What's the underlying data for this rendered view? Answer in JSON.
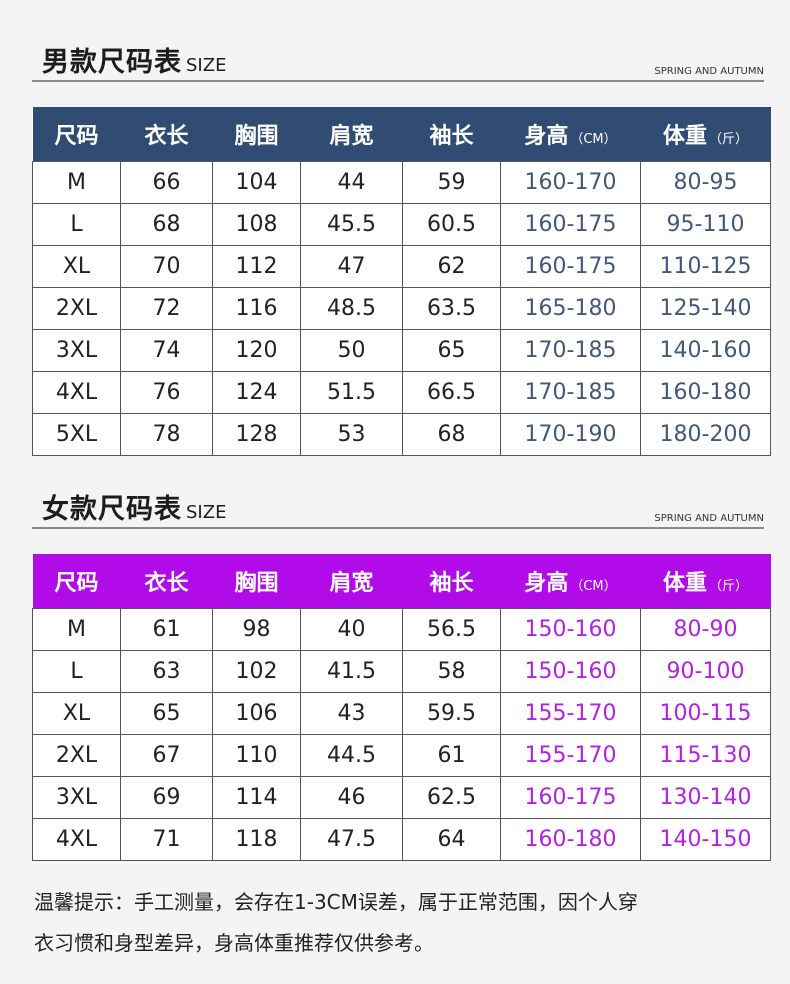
{
  "colors": {
    "men_header_bg": "#304c72",
    "women_header_bg": "#b10be9",
    "men_range_text": "#44577a",
    "women_range_text": "#b321e6"
  },
  "men": {
    "title": "男款尺码表",
    "title_en": "SIZE",
    "subtitle": "SPRING AND AUTUMN",
    "headers": [
      "尺码",
      "衣长",
      "胸围",
      "肩宽",
      "袖长",
      "身高",
      "体重"
    ],
    "header_units": {
      "height": "（CM）",
      "weight": "（斤）"
    },
    "rows": [
      [
        "M",
        "66",
        "104",
        "44",
        "59",
        "160-170",
        "80-95"
      ],
      [
        "L",
        "68",
        "108",
        "45.5",
        "60.5",
        "160-175",
        "95-110"
      ],
      [
        "XL",
        "70",
        "112",
        "47",
        "62",
        "160-175",
        "110-125"
      ],
      [
        "2XL",
        "72",
        "116",
        "48.5",
        "63.5",
        "165-180",
        "125-140"
      ],
      [
        "3XL",
        "74",
        "120",
        "50",
        "65",
        "170-185",
        "140-160"
      ],
      [
        "4XL",
        "76",
        "124",
        "51.5",
        "66.5",
        "170-185",
        "160-180"
      ],
      [
        "5XL",
        "78",
        "128",
        "53",
        "68",
        "170-190",
        "180-200"
      ]
    ]
  },
  "women": {
    "title": "女款尺码表",
    "title_en": "SIZE",
    "subtitle": "SPRING AND AUTUMN",
    "headers": [
      "尺码",
      "衣长",
      "胸围",
      "肩宽",
      "袖长",
      "身高",
      "体重"
    ],
    "header_units": {
      "height": "（CM）",
      "weight": "（斤）"
    },
    "rows": [
      [
        "M",
        "61",
        "98",
        "40",
        "56.5",
        "150-160",
        "80-90"
      ],
      [
        "L",
        "63",
        "102",
        "41.5",
        "58",
        "150-160",
        "90-100"
      ],
      [
        "XL",
        "65",
        "106",
        "43",
        "59.5",
        "155-170",
        "100-115"
      ],
      [
        "2XL",
        "67",
        "110",
        "44.5",
        "61",
        "155-170",
        "115-130"
      ],
      [
        "3XL",
        "69",
        "114",
        "46",
        "62.5",
        "160-175",
        "130-140"
      ],
      [
        "4XL",
        "71",
        "118",
        "47.5",
        "64",
        "160-180",
        "140-150"
      ]
    ]
  },
  "note": {
    "line1": "温馨提示：手工测量，会存在1-3CM误差，属于正常范围，因个人穿",
    "line2": "衣习惯和身型差异，身高体重推荐仅供参考。"
  }
}
